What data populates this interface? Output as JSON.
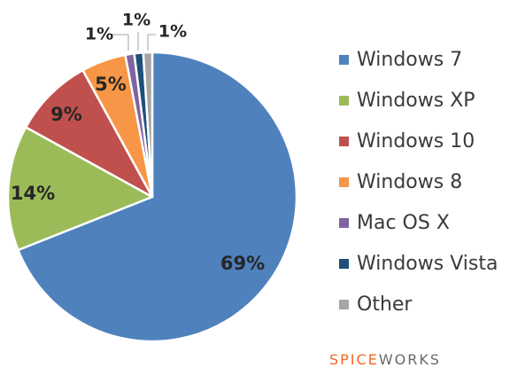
{
  "chart_data": {
    "type": "pie",
    "categories": [
      "Windows 7",
      "Windows XP",
      "Windows 10",
      "Windows 8",
      "Mac OS X",
      "Windows Vista",
      "Other"
    ],
    "values": [
      69,
      14,
      9,
      5,
      1,
      1,
      1
    ],
    "data_labels": [
      "69%",
      "14%",
      "9%",
      "5%",
      "1%",
      "1%",
      "1%"
    ],
    "colors": [
      "#4f81bd",
      "#9bbb59",
      "#c0504d",
      "#f79646",
      "#8064a2",
      "#1f4e79",
      "#a5a5a5"
    ],
    "legend": "right",
    "start_angle": "12 o'clock, clockwise"
  },
  "branding": {
    "part1": "SPICE",
    "part2": "WORKS",
    "colors": [
      "#f26522",
      "#6a6a6a"
    ]
  }
}
